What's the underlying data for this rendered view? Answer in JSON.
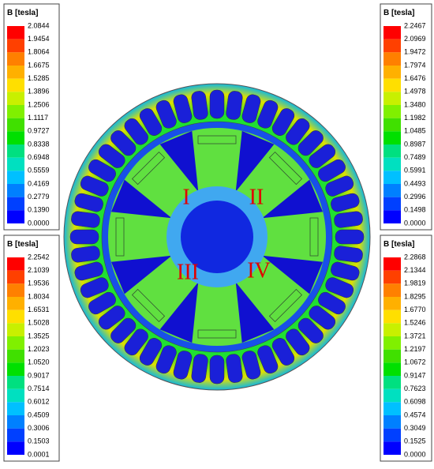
{
  "legends": [
    {
      "title": "B [tesla]",
      "values": [
        "2.0844",
        "1.9454",
        "1.8064",
        "1.6675",
        "1.5285",
        "1.3896",
        "1.2506",
        "1.1117",
        "0.9727",
        "0.8338",
        "0.6948",
        "0.5559",
        "0.4169",
        "0.2779",
        "0.1390",
        "0.0000"
      ]
    },
    {
      "title": "B [tesla]",
      "values": [
        "2.2467",
        "2.0969",
        "1.9472",
        "1.7974",
        "1.6476",
        "1.4978",
        "1.3480",
        "1.1982",
        "1.0485",
        "0.8987",
        "0.7489",
        "0.5991",
        "0.4493",
        "0.2996",
        "0.1498",
        "0.0000"
      ]
    },
    {
      "title": "B [tesla]",
      "values": [
        "2.2542",
        "2.1039",
        "1.9536",
        "1.8034",
        "1.6531",
        "1.5028",
        "1.3525",
        "1.2023",
        "1.0520",
        "0.9017",
        "0.7514",
        "0.6012",
        "0.4509",
        "0.3006",
        "0.1503",
        "0.0001"
      ]
    },
    {
      "title": "B [tesla]",
      "values": [
        "2.2868",
        "2.1344",
        "1.9819",
        "1.8295",
        "1.6770",
        "1.5246",
        "1.3721",
        "1.2197",
        "1.0672",
        "0.9147",
        "0.7623",
        "0.6098",
        "0.4574",
        "0.3049",
        "0.1525",
        "0.0000"
      ]
    }
  ],
  "labels": [
    "I",
    "II",
    "III",
    "IV"
  ]
}
